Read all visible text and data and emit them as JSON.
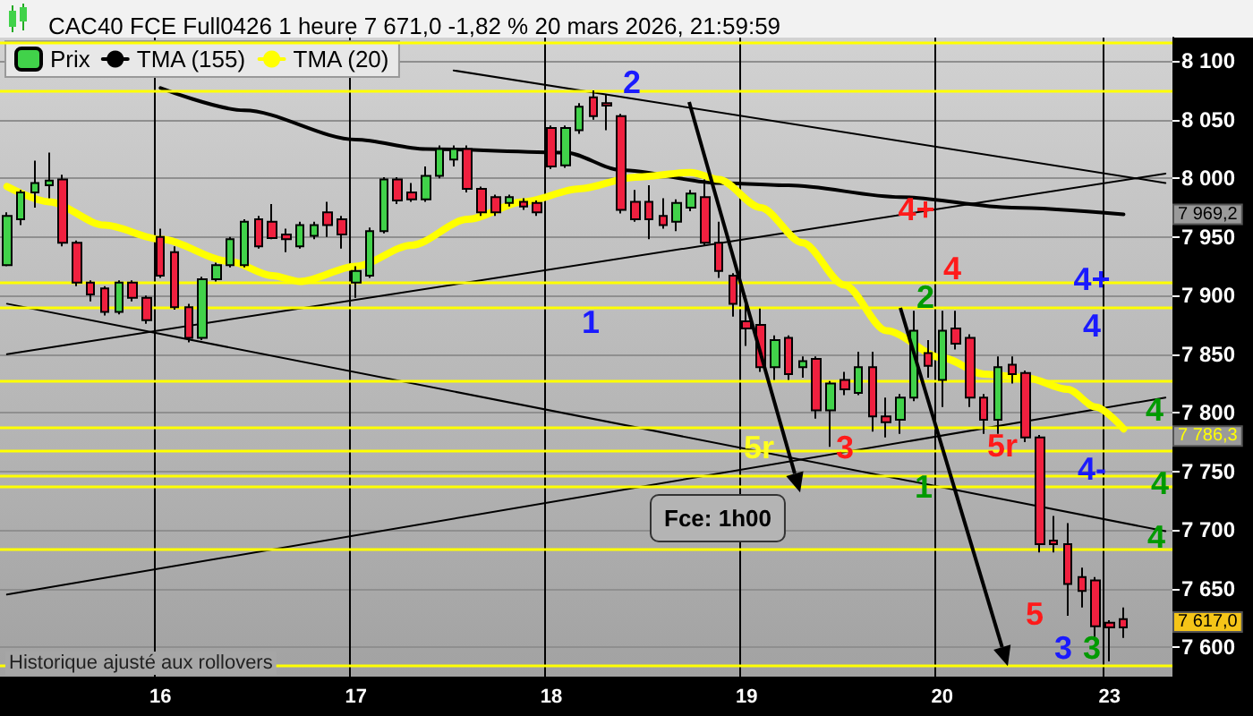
{
  "chart_data": {
    "type": "candlestick",
    "title": "CAC40 FCE Full0426 1 heure 7 671,0 -1,82 % 20 mars 2026, 21:59:59",
    "categories": [
      null,
      null,
      null,
      null,
      null,
      null,
      null,
      null,
      null,
      null,
      null,
      "16",
      null,
      null,
      null,
      null,
      null,
      null,
      null,
      null,
      null,
      null,
      null,
      null,
      null,
      "17",
      null,
      null,
      null,
      null,
      null,
      null,
      null,
      null,
      null,
      null,
      null,
      null,
      null,
      "18",
      null,
      null,
      null,
      null,
      null,
      null,
      null,
      null,
      null,
      null,
      null,
      null,
      null,
      "19",
      null,
      null,
      null,
      null,
      null,
      null,
      null,
      null,
      null,
      null,
      null,
      null,
      null,
      "20",
      null,
      null,
      null,
      null,
      null,
      null,
      null,
      null,
      null,
      null,
      null,
      "23",
      null,
      null,
      null,
      null
    ],
    "series": [
      {
        "name": "Prix",
        "color": "#41d24a",
        "ohlc": [
          [
            7926,
            7971,
            7925,
            7968
          ],
          [
            7965,
            7990,
            7960,
            7988
          ],
          [
            7988,
            8015,
            7975,
            7996
          ],
          [
            7994,
            8022,
            7983,
            7998
          ],
          [
            7999,
            8003,
            7942,
            7945
          ],
          [
            7945,
            7947,
            7908,
            7911
          ],
          [
            7911,
            7913,
            7895,
            7901
          ],
          [
            7906,
            7908,
            7883,
            7886
          ],
          [
            7886,
            7913,
            7884,
            7911
          ],
          [
            7911,
            7913,
            7895,
            7898
          ],
          [
            7898,
            7900,
            7876,
            7879
          ],
          [
            7950,
            7957,
            7915,
            7917
          ],
          [
            7937,
            7942,
            7888,
            7890
          ],
          [
            7890,
            7893,
            7860,
            7864
          ],
          [
            7864,
            7916,
            7862,
            7914
          ],
          [
            7914,
            7928,
            7912,
            7926
          ],
          [
            7926,
            7950,
            7924,
            7948
          ],
          [
            7926,
            7965,
            7924,
            7963
          ],
          [
            7965,
            7968,
            7940,
            7942
          ],
          [
            7963,
            7978,
            7948,
            7949
          ],
          [
            7952,
            7957,
            7937,
            7948
          ],
          [
            7942,
            7963,
            7940,
            7960
          ],
          [
            7951,
            7963,
            7948,
            7960
          ],
          [
            7971,
            7980,
            7950,
            7960
          ],
          [
            7965,
            7968,
            7940,
            7952
          ],
          [
            7911,
            7925,
            7898,
            7921
          ],
          [
            7917,
            7958,
            7915,
            7955
          ],
          [
            7955,
            8001,
            7953,
            7999
          ],
          [
            7999,
            8001,
            7978,
            7981
          ],
          [
            7988,
            7996,
            7980,
            7982
          ],
          [
            7982,
            8010,
            7980,
            8002
          ],
          [
            8002,
            8028,
            8000,
            8025
          ],
          [
            8016,
            8028,
            8010,
            8025
          ],
          [
            8025,
            8028,
            7988,
            7991
          ],
          [
            7991,
            7993,
            7968,
            7971
          ],
          [
            7984,
            7986,
            7968,
            7971
          ],
          [
            7979,
            7986,
            7976,
            7984
          ],
          [
            7980,
            7983,
            7973,
            7976
          ],
          [
            7979,
            7981,
            7968,
            7971
          ],
          [
            8043,
            8045,
            8008,
            8010
          ],
          [
            8011,
            8045,
            8009,
            8043
          ],
          [
            8041,
            8064,
            8038,
            8061
          ],
          [
            8069,
            8075,
            8050,
            8053
          ],
          [
            8064,
            8072,
            8041,
            8062
          ],
          [
            8053,
            8055,
            7970,
            7973
          ],
          [
            7980,
            7990,
            7963,
            7965
          ],
          [
            7980,
            7994,
            7948,
            7965
          ],
          [
            7968,
            7983,
            7957,
            7960
          ],
          [
            7963,
            7982,
            7955,
            7979
          ],
          [
            7975,
            7990,
            7972,
            7987
          ],
          [
            7984,
            7999,
            7943,
            7945
          ],
          [
            7945,
            7963,
            7915,
            7921
          ],
          [
            7917,
            7919,
            7882,
            7893
          ],
          [
            7878,
            7900,
            7857,
            7872
          ],
          [
            7875,
            7889,
            7835,
            7839
          ],
          [
            7839,
            7866,
            7828,
            7862
          ],
          [
            7864,
            7866,
            7828,
            7833
          ],
          [
            7839,
            7848,
            7830,
            7844
          ],
          [
            7846,
            7848,
            7795,
            7802
          ],
          [
            7802,
            7827,
            7771,
            7825
          ],
          [
            7828,
            7835,
            7815,
            7820
          ],
          [
            7817,
            7852,
            7815,
            7839
          ],
          [
            7839,
            7852,
            7784,
            7797
          ],
          [
            7797,
            7813,
            7779,
            7792
          ],
          [
            7794,
            7816,
            7782,
            7813
          ],
          [
            7813,
            7887,
            7810,
            7870
          ],
          [
            7851,
            7862,
            7830,
            7840
          ],
          [
            7828,
            7887,
            7805,
            7870
          ],
          [
            7872,
            7887,
            7854,
            7859
          ],
          [
            7864,
            7867,
            7805,
            7813
          ],
          [
            7813,
            7816,
            7782,
            7794
          ],
          [
            7794,
            7848,
            7782,
            7839
          ],
          [
            7841,
            7848,
            7825,
            7833
          ],
          [
            7834,
            7836,
            7775,
            7779
          ],
          [
            7779,
            7781,
            7681,
            7688
          ],
          [
            7691,
            7712,
            7681,
            7688
          ],
          [
            7688,
            7706,
            7627,
            7654
          ],
          [
            7660,
            7668,
            7634,
            7648
          ],
          [
            7657,
            7660,
            7606,
            7618
          ],
          [
            7621,
            7623,
            7588,
            7617
          ],
          [
            7624,
            7634,
            7608,
            7617
          ],
          null,
          null,
          null
        ],
        "colors": [
          "#41d24a",
          "#41d24a",
          "#41d24a",
          "#41d24a",
          "#f0203f",
          "#f0203f",
          "#f0203f",
          "#f0203f",
          "#41d24a",
          "#f0203f",
          "#f0203f",
          "#f0203f",
          "#f0203f",
          "#f0203f",
          "#41d24a",
          "#41d24a",
          "#41d24a",
          "#41d24a",
          "#f0203f",
          "#f0203f",
          "#f0203f",
          "#41d24a",
          "#41d24a",
          "#f0203f",
          "#f0203f",
          "#41d24a",
          "#41d24a",
          "#41d24a",
          "#f0203f",
          "#f0203f",
          "#41d24a",
          "#41d24a",
          "#41d24a",
          "#f0203f",
          "#f0203f",
          "#f0203f",
          "#41d24a",
          "#f0203f",
          "#f0203f",
          "#f0203f",
          "#41d24a",
          "#41d24a",
          "#f0203f",
          "#f0203f",
          "#f0203f",
          "#f0203f",
          "#f0203f",
          "#f0203f",
          "#41d24a",
          "#41d24a",
          "#f0203f",
          "#f0203f",
          "#f0203f",
          "#f0203f",
          "#f0203f",
          "#41d24a",
          "#f0203f",
          "#41d24a",
          "#f0203f",
          "#41d24a",
          "#f0203f",
          "#41d24a",
          "#f0203f",
          "#f0203f",
          "#41d24a",
          "#41d24a",
          "#f0203f",
          "#41d24a",
          "#f0203f",
          "#f0203f",
          "#f0203f",
          "#41d24a",
          "#f0203f",
          "#f0203f",
          "#f0203f",
          "#f0203f",
          "#f0203f",
          "#f0203f",
          "#f0203f",
          "#f0203f",
          "#f0203f",
          null,
          null,
          null
        ]
      },
      {
        "name": "TMA (155)",
        "type": "line",
        "color": "#000000",
        "values": [
          null,
          null,
          null,
          null,
          null,
          null,
          null,
          null,
          null,
          null,
          null,
          8077,
          null,
          null,
          null,
          null,
          null,
          8058,
          null,
          null,
          null,
          null,
          null,
          null,
          null,
          8033,
          null,
          null,
          null,
          null,
          8025,
          null,
          null,
          null,
          null,
          null,
          null,
          null,
          null,
          null,
          8022,
          null,
          null,
          null,
          8007,
          null,
          null,
          null,
          null,
          null,
          null,
          7996,
          null,
          null,
          null,
          null,
          7994,
          null,
          null,
          null,
          null,
          null,
          null,
          null,
          7984,
          null,
          null,
          null,
          null,
          null,
          null,
          null,
          7975,
          null,
          null,
          null,
          null,
          null,
          null,
          null,
          7969.2,
          null,
          null,
          null
        ]
      },
      {
        "name": "TMA (20)",
        "type": "line",
        "color": "#ffff00",
        "values": [
          7993,
          null,
          null,
          7980,
          null,
          null,
          null,
          7960,
          null,
          null,
          null,
          7948,
          null,
          null,
          null,
          null,
          7929,
          null,
          null,
          7917,
          null,
          7912,
          null,
          null,
          null,
          7925,
          null,
          null,
          null,
          7943,
          null,
          null,
          null,
          7965,
          null,
          null,
          null,
          7980,
          null,
          null,
          null,
          7991,
          null,
          null,
          null,
          8001,
          null,
          null,
          null,
          8005,
          null,
          7999,
          null,
          null,
          7975,
          null,
          null,
          7945,
          null,
          null,
          7909,
          null,
          null,
          7870,
          null,
          null,
          null,
          7847,
          null,
          null,
          7833,
          null,
          null,
          7830,
          null,
          null,
          7820,
          null,
          7805,
          null,
          7786.3,
          null,
          null,
          null
        ]
      },
      {
        "type": "line",
        "color": "#000000",
        "values": [
          7645,
          null,
          null,
          null,
          null,
          null,
          null,
          null,
          null,
          null,
          null,
          null,
          null,
          null,
          null,
          null,
          null,
          null,
          null,
          null,
          null,
          null,
          null,
          null,
          null,
          null,
          null,
          null,
          null,
          null,
          null,
          null,
          null,
          null,
          null,
          null,
          null,
          null,
          null,
          null,
          null,
          null,
          null,
          null,
          null,
          null,
          null,
          null,
          null,
          null,
          null,
          null,
          null,
          null,
          null,
          null,
          null,
          null,
          null,
          null,
          null,
          null,
          null,
          null,
          null,
          null,
          null,
          null,
          null,
          null,
          null,
          null,
          null,
          null,
          null,
          null,
          null,
          null,
          null,
          null,
          null,
          null,
          null,
          7813
        ]
      },
      {
        "type": "line",
        "color": "#000000",
        "values": [
          7893,
          null,
          null,
          null,
          null,
          null,
          null,
          null,
          null,
          null,
          null,
          null,
          null,
          null,
          null,
          null,
          null,
          null,
          null,
          null,
          null,
          null,
          null,
          null,
          null,
          null,
          null,
          null,
          null,
          null,
          null,
          null,
          null,
          null,
          null,
          null,
          null,
          null,
          null,
          null,
          null,
          null,
          null,
          null,
          null,
          null,
          null,
          null,
          null,
          null,
          null,
          null,
          null,
          null,
          null,
          null,
          null,
          null,
          null,
          null,
          null,
          null,
          null,
          null,
          null,
          null,
          null,
          null,
          null,
          null,
          null,
          null,
          null,
          null,
          null,
          null,
          null,
          null,
          null,
          null,
          null,
          null,
          null,
          7699
        ]
      },
      {
        "type": "line",
        "color": "#000000",
        "values": [
          7850,
          null,
          null,
          null,
          null,
          null,
          null,
          null,
          null,
          null,
          null,
          null,
          null,
          null,
          null,
          null,
          null,
          null,
          null,
          null,
          null,
          null,
          null,
          null,
          null,
          null,
          null,
          null,
          null,
          null,
          null,
          null,
          null,
          null,
          null,
          null,
          null,
          null,
          null,
          null,
          null,
          null,
          null,
          null,
          null,
          null,
          null,
          null,
          null,
          null,
          null,
          null,
          null,
          null,
          null,
          null,
          null,
          null,
          null,
          null,
          null,
          null,
          null,
          null,
          null,
          null,
          null,
          null,
          null,
          null,
          null,
          null,
          null,
          null,
          null,
          null,
          null,
          null,
          null,
          null,
          null,
          null,
          null,
          8004
        ]
      },
      {
        "type": "line",
        "color": "#000000",
        "values": [
          null,
          null,
          null,
          null,
          null,
          null,
          null,
          null,
          null,
          null,
          null,
          null,
          null,
          null,
          null,
          null,
          null,
          null,
          null,
          null,
          null,
          null,
          null,
          null,
          null,
          null,
          null,
          null,
          null,
          null,
          null,
          null,
          8092,
          null,
          null,
          null,
          null,
          null,
          null,
          null,
          null,
          null,
          null,
          null,
          null,
          null,
          null,
          null,
          null,
          null,
          null,
          null,
          null,
          null,
          null,
          null,
          null,
          null,
          null,
          null,
          null,
          null,
          null,
          null,
          null,
          null,
          null,
          null,
          null,
          null,
          null,
          null,
          null,
          null,
          null,
          null,
          null,
          null,
          null,
          null,
          null,
          null,
          null,
          7996
        ]
      }
    ],
    "ylim": [
      7575,
      8120
    ],
    "yticks": [
      {
        "value": 7600,
        "label": "7 600"
      },
      {
        "value": 7650,
        "label": "7 650"
      },
      {
        "value": 7700,
        "label": "7 700"
      },
      {
        "value": 7750,
        "label": "7 750"
      },
      {
        "value": 7800,
        "label": "7 800"
      },
      {
        "value": 7850,
        "label": "7 850"
      },
      {
        "value": 7900,
        "label": "7 900"
      },
      {
        "value": 7950,
        "label": "7 950"
      },
      {
        "value": 8000,
        "label": "8 000"
      },
      {
        "value": 8050,
        "label": "8 050"
      },
      {
        "value": 8100,
        "label": "8 100"
      }
    ],
    "ref_lines": [
      {
        "axis": "y",
        "value": 8116,
        "color": "#ffff00"
      },
      {
        "axis": "y",
        "value": 8074,
        "color": "#ffff00"
      },
      {
        "axis": "y",
        "value": 7911,
        "color": "#ffff00"
      },
      {
        "axis": "y",
        "value": 7890,
        "color": "#ffff00"
      },
      {
        "axis": "y",
        "value": 7828,
        "color": "#ffff00"
      },
      {
        "axis": "y",
        "value": 7788,
        "color": "#ffff00"
      },
      {
        "axis": "y",
        "value": 7768,
        "color": "#ffff00"
      },
      {
        "axis": "y",
        "value": 7746,
        "color": "#ffff00"
      },
      {
        "axis": "y",
        "value": 7737,
        "color": "#ffff00"
      },
      {
        "axis": "y",
        "value": 7684,
        "color": "#ffff00"
      },
      {
        "axis": "y",
        "value": 7584,
        "color": "#ffff00"
      }
    ],
    "annotations": [
      "2",
      "1",
      {
        "text": "5r",
        "y": 7732
      },
      "3",
      "4+",
      "4",
      "2",
      "1",
      "5r",
      "4+",
      "4",
      "4-",
      {
        "text": "5",
        "y": 7584
      },
      "3",
      "3",
      "4",
      "4",
      "4",
      "Fce: 1h00",
      "Historique ajusté aux rollovers",
      "7 969,2",
      "7 786,3",
      "7 617,0"
    ],
    "grid": true,
    "legend": "top left",
    "marker": "none"
  }
}
